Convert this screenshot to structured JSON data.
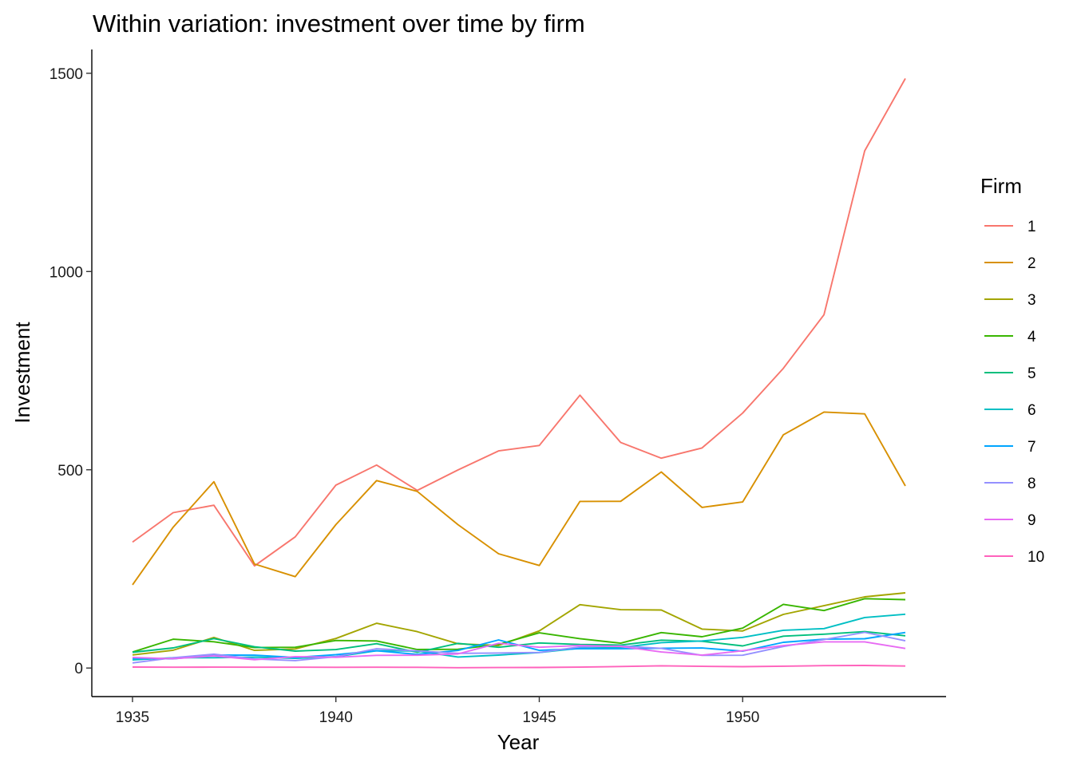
{
  "chart_data": {
    "type": "line",
    "title": "Within variation: investment over time by firm",
    "xlabel": "Year",
    "ylabel": "Investment",
    "xlim": [
      1934.0,
      1955.0
    ],
    "ylim": [
      -72,
      1560
    ],
    "x_ticks": [
      1935,
      1940,
      1945,
      1950
    ],
    "y_ticks": [
      0,
      500,
      1000,
      1500
    ],
    "grid": false,
    "legend": {
      "title": "Firm",
      "position": "right"
    },
    "x": [
      1935,
      1936,
      1937,
      1938,
      1939,
      1940,
      1941,
      1942,
      1943,
      1944,
      1945,
      1946,
      1947,
      1948,
      1949,
      1950,
      1951,
      1952,
      1953,
      1954
    ],
    "series": [
      {
        "name": "1",
        "color": "#F8766D",
        "values": [
          317.6,
          391.8,
          410.6,
          257.7,
          330.8,
          461.2,
          512.0,
          448.0,
          499.6,
          547.5,
          561.2,
          688.1,
          568.9,
          529.2,
          555.1,
          642.9,
          755.9,
          891.2,
          1304.4,
          1486.7
        ]
      },
      {
        "name": "2",
        "color": "#D89000",
        "values": [
          209.9,
          355.3,
          469.9,
          262.3,
          230.4,
          361.6,
          472.8,
          445.6,
          361.6,
          288.2,
          258.7,
          420.3,
          420.5,
          494.5,
          405.1,
          418.8,
          588.2,
          645.5,
          641.0,
          459.3
        ]
      },
      {
        "name": "3",
        "color": "#A3A500",
        "values": [
          33.1,
          45.0,
          77.2,
          44.6,
          48.1,
          74.4,
          113.0,
          91.9,
          61.3,
          56.8,
          93.6,
          159.9,
          147.2,
          146.3,
          98.3,
          93.5,
          135.2,
          157.3,
          179.5,
          189.6
        ]
      },
      {
        "name": "4",
        "color": "#39B600",
        "values": [
          40.29,
          72.76,
          66.26,
          51.6,
          52.41,
          69.41,
          68.35,
          46.8,
          47.4,
          59.57,
          88.78,
          74.12,
          62.68,
          89.36,
          78.98,
          100.66,
          160.62,
          145.0,
          174.93,
          172.49
        ]
      },
      {
        "name": "5",
        "color": "#00BF7D",
        "values": [
          39.68,
          50.73,
          74.24,
          53.51,
          42.65,
          46.48,
          61.4,
          39.67,
          62.24,
          52.32,
          63.21,
          59.37,
          58.02,
          70.34,
          67.42,
          55.74,
          80.3,
          85.4,
          91.9,
          81.43
        ]
      },
      {
        "name": "6",
        "color": "#00BFC4",
        "values": [
          20.36,
          25.98,
          25.94,
          27.53,
          24.6,
          28.54,
          43.41,
          42.81,
          27.84,
          32.6,
          39.03,
          50.17,
          51.85,
          64.03,
          68.16,
          77.34,
          95.3,
          99.49,
          127.52,
          135.72
        ]
      },
      {
        "name": "7",
        "color": "#00A5FF",
        "values": [
          24.43,
          23.21,
          32.78,
          32.54,
          26.65,
          33.71,
          43.5,
          34.46,
          44.28,
          70.8,
          44.45,
          48.98,
          48.51,
          50.0,
          50.59,
          42.53,
          64.77,
          72.68,
          73.86,
          89.51
        ]
      },
      {
        "name": "8",
        "color": "#9590FF",
        "values": [
          12.93,
          25.9,
          35.05,
          22.89,
          18.84,
          28.57,
          48.51,
          43.34,
          37.02,
          37.81,
          39.27,
          53.46,
          55.56,
          49.56,
          32.04,
          32.24,
          54.38,
          71.78,
          90.08,
          68.6
        ]
      },
      {
        "name": "9",
        "color": "#E76BF3",
        "values": [
          26.63,
          23.39,
          30.65,
          20.89,
          28.78,
          26.93,
          32.08,
          32.21,
          35.69,
          62.47,
          52.32,
          56.95,
          54.32,
          40.53,
          32.54,
          43.48,
          56.49,
          65.98,
          66.11,
          49.34
        ]
      },
      {
        "name": "10",
        "color": "#FF62BC",
        "values": [
          2.54,
          2.0,
          2.19,
          1.99,
          2.03,
          1.81,
          2.14,
          1.86,
          0.93,
          1.18,
          1.36,
          2.24,
          3.81,
          5.66,
          4.21,
          3.42,
          4.67,
          6.0,
          6.53,
          5.12
        ]
      }
    ]
  }
}
